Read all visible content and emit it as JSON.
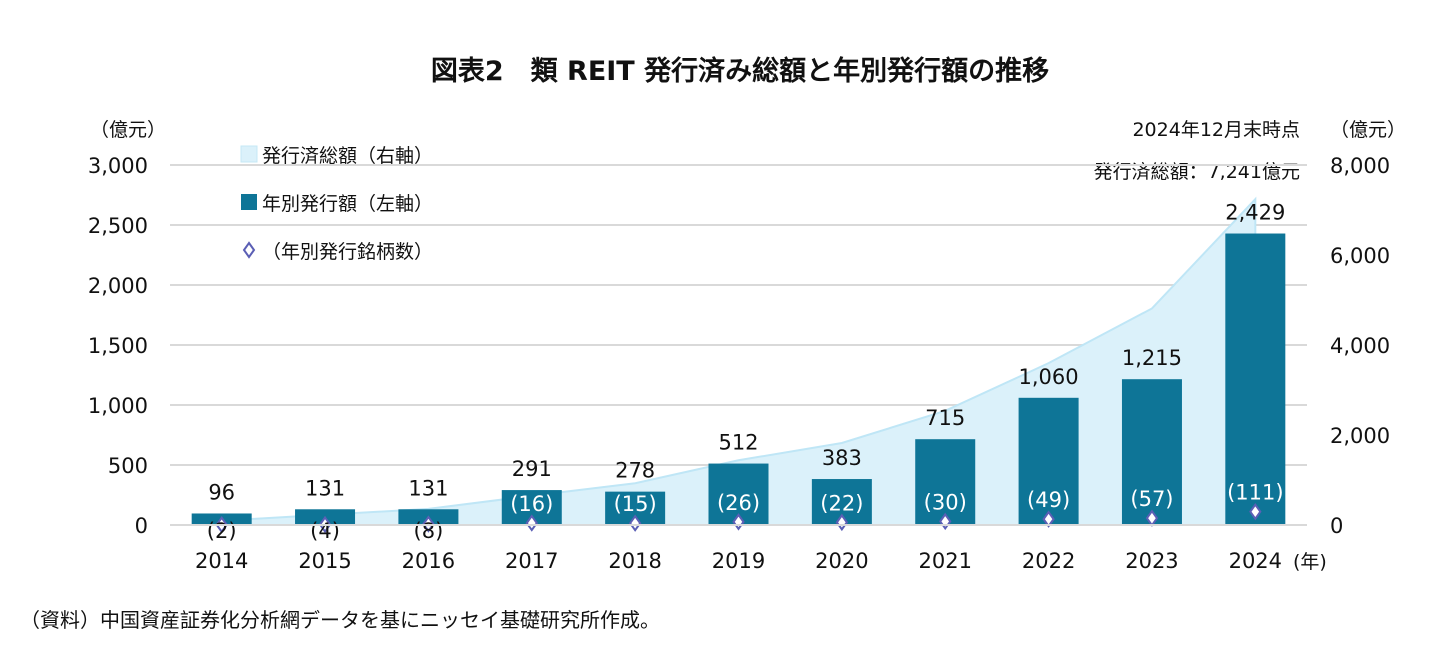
{
  "chart_data": {
    "type": "bar",
    "title": "図表2　類 REIT 発行済み総額と年別発行額の推移",
    "categories": [
      "2014",
      "2015",
      "2016",
      "2017",
      "2018",
      "2019",
      "2020",
      "2021",
      "2022",
      "2023",
      "2024"
    ],
    "x_unit": "(年)",
    "left_axis": {
      "unit": "（億元）",
      "ylim": [
        0,
        3000
      ],
      "ticks": [
        "0",
        "500",
        "1,000",
        "1,500",
        "2,000",
        "2,500",
        "3,000"
      ]
    },
    "right_axis": {
      "unit": "（億元）",
      "ylim": [
        0,
        8000
      ],
      "ticks": [
        "0",
        "2,000",
        "4,000",
        "6,000",
        "8,000"
      ]
    },
    "grid": true,
    "legend_placement": "top-left",
    "series": [
      {
        "name": "発行済総額（右軸）",
        "type": "area",
        "axis": "right",
        "color": "#dbf1fa",
        "values": [
          96,
          227,
          358,
          649,
          927,
          1439,
          1822,
          2537,
          3597,
          4812,
          7241
        ]
      },
      {
        "name": "年別発行額（左軸）",
        "type": "bar",
        "axis": "left",
        "color": "#0e7597",
        "values": [
          96,
          131,
          131,
          291,
          278,
          512,
          383,
          715,
          1060,
          1215,
          2429
        ],
        "labels": [
          "96",
          "131",
          "131",
          "291",
          "278",
          "512",
          "383",
          "715",
          "1,060",
          "1,215",
          "2,429"
        ]
      },
      {
        "name": "（年別発行銘柄数）",
        "type": "marker",
        "axis": "left",
        "color": "#5b5fb5",
        "values": [
          2,
          4,
          8,
          16,
          15,
          26,
          22,
          30,
          49,
          57,
          111
        ],
        "labels": [
          "(2)",
          "(4)",
          "(8)",
          "(16)",
          "(15)",
          "(26)",
          "(22)",
          "(30)",
          "(49)",
          "(57)",
          "(111)"
        ]
      }
    ],
    "annotations": [
      "2024年12月末時点",
      "発行済総額：7,241億元"
    ]
  },
  "source": "（資料）中国資産証券化分析網データを基にニッセイ基礎研究所作成。"
}
